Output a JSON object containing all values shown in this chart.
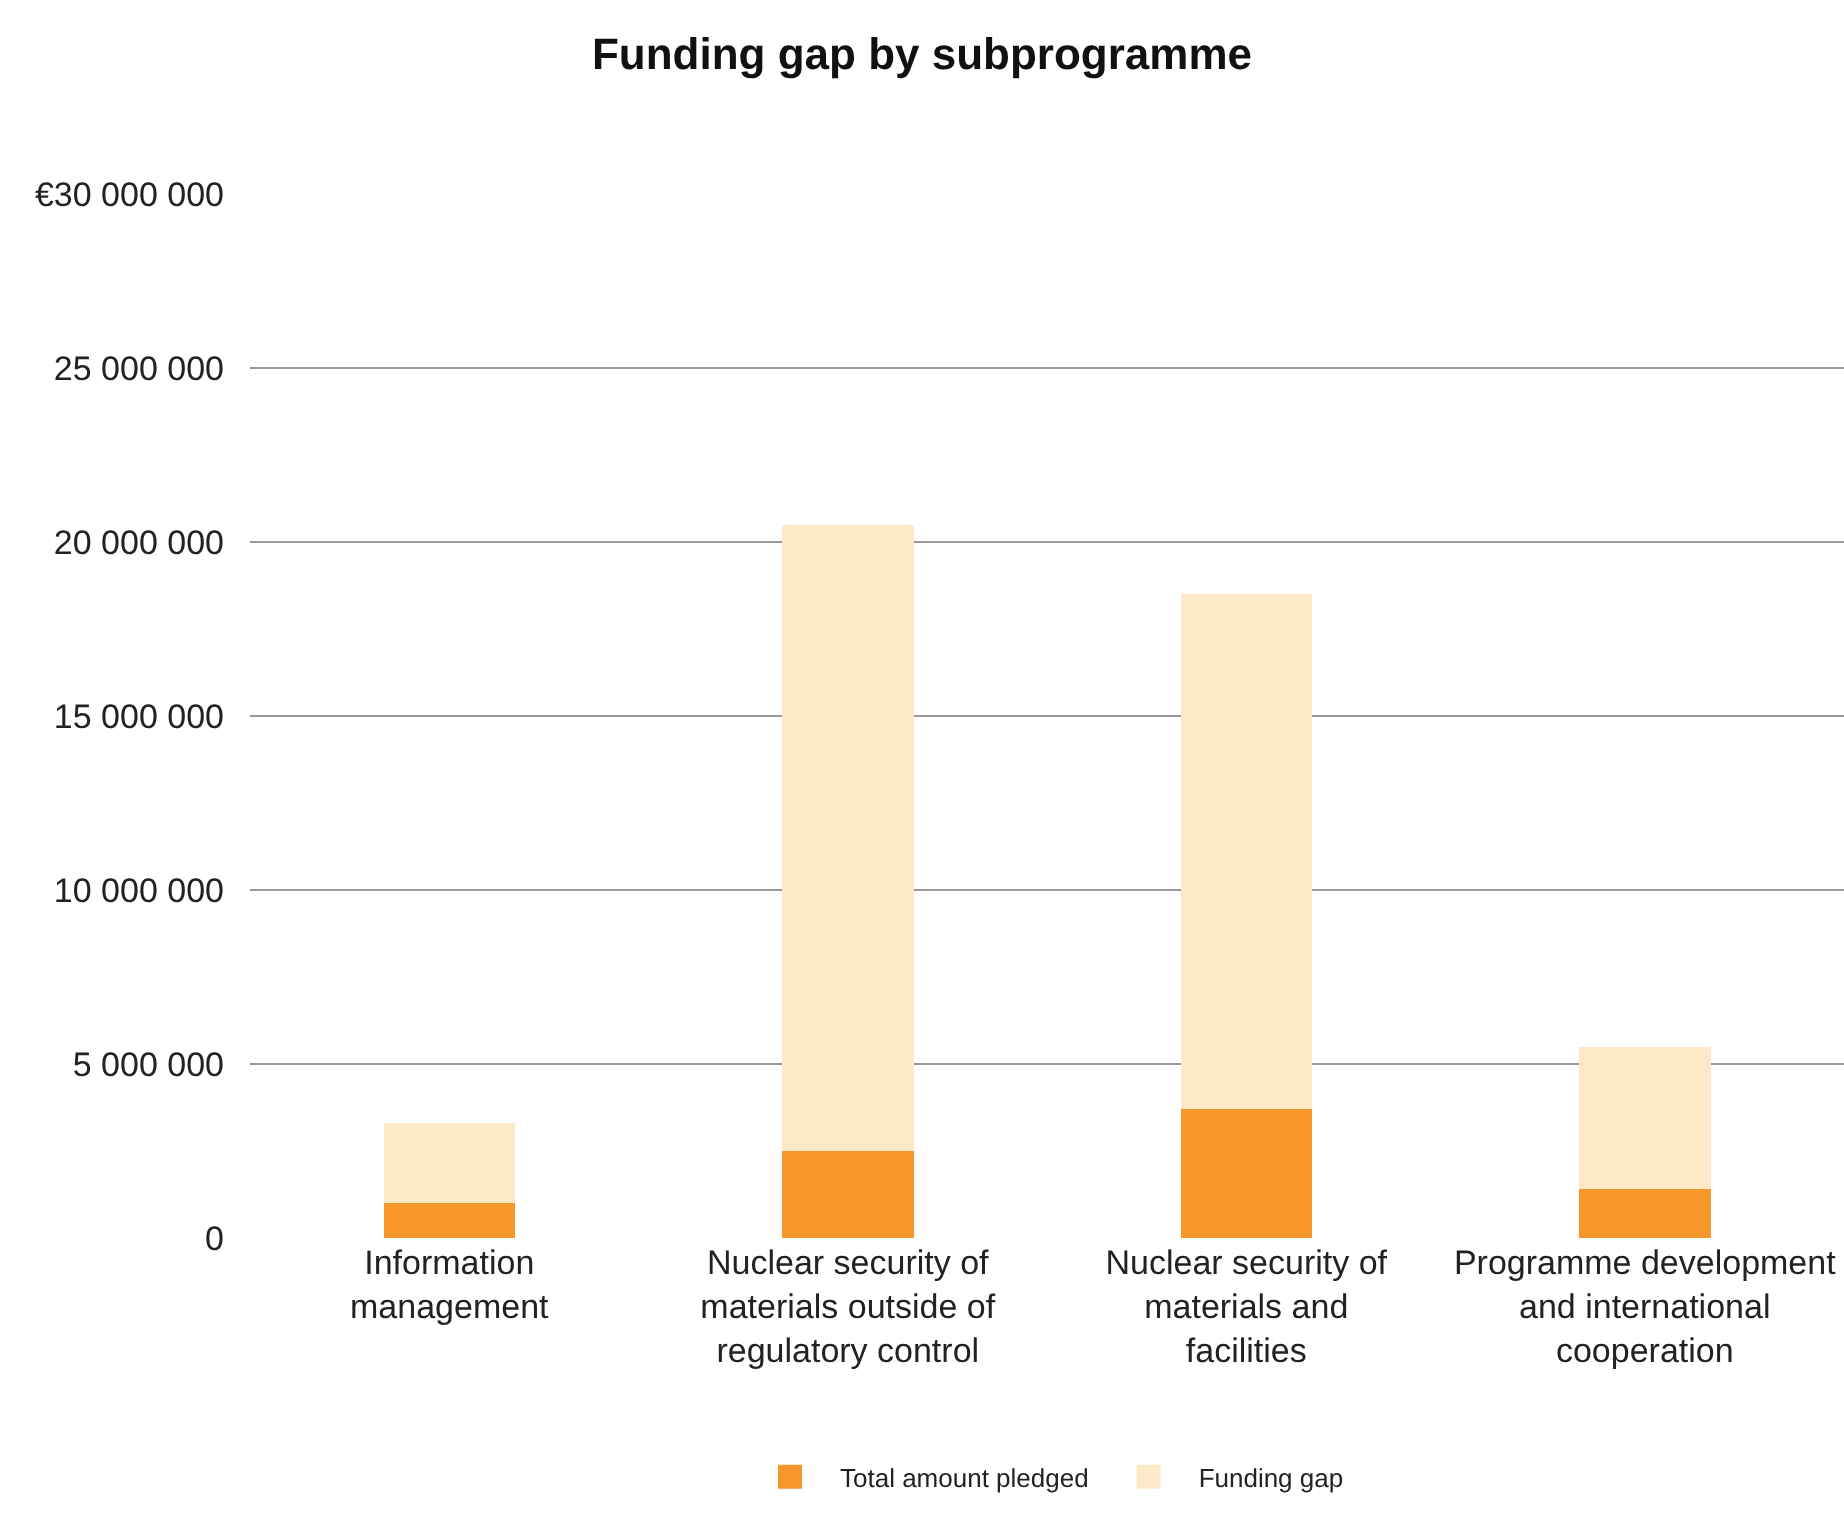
{
  "chart_data": {
    "type": "bar",
    "title": "Funding gap by subprogramme",
    "stacked": true,
    "categories": [
      "Information management",
      "Nuclear security of materials outside of regulatory control",
      "Nuclear security of materials and facilities",
      "Programme development and international cooperation"
    ],
    "series": [
      {
        "name": "Total amount pledged",
        "color": "#f7962b",
        "values": [
          1000000,
          2500000,
          3700000,
          1400000
        ]
      },
      {
        "name": "Funding gap",
        "color": "#fde8c8",
        "values": [
          2300000,
          18000000,
          14800000,
          4100000
        ]
      }
    ],
    "ylim": [
      0,
      30000000
    ],
    "yticks": [
      0,
      {
        "value": 5000000,
        "label": "5 000 000"
      },
      {
        "value": 10000000,
        "label": "10 000 000"
      },
      {
        "value": 15000000,
        "label": "15 000 000"
      },
      {
        "value": 20000000,
        "label": "20 000 000"
      },
      {
        "value": 25000000,
        "label": "25 000 000"
      },
      {
        "value": 30000000,
        "label": "€30 000 000"
      }
    ],
    "grid": "y",
    "legend": "bottom"
  }
}
